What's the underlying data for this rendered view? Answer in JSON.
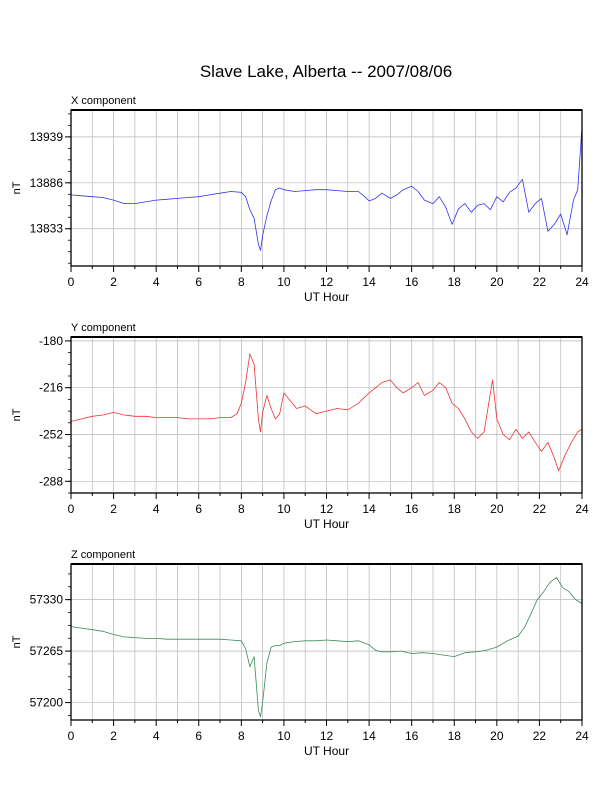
{
  "title": "Slave Lake, Alberta -- 2007/08/06",
  "chart_data": [
    {
      "type": "line",
      "panel_label": "X component",
      "xlabel": "UT Hour",
      "ylabel": "nT",
      "xlim": [
        0,
        24
      ],
      "ylim": [
        13790,
        13970
      ],
      "xticks": [
        0,
        2,
        4,
        6,
        8,
        10,
        12,
        14,
        16,
        18,
        20,
        22,
        24
      ],
      "yticks": [
        13833,
        13886,
        13939
      ],
      "grid": true,
      "color": "#3333ee",
      "x": [
        0,
        0.5,
        1,
        1.5,
        2,
        2.5,
        3,
        3.5,
        4,
        4.5,
        5,
        5.5,
        6,
        6.5,
        7,
        7.5,
        8,
        8.2,
        8.4,
        8.6,
        8.8,
        8.9,
        9.0,
        9.2,
        9.4,
        9.6,
        9.8,
        10.0,
        10.5,
        11,
        11.5,
        12,
        12.5,
        13,
        13.5,
        13.8,
        14,
        14.3,
        14.6,
        15,
        15.3,
        15.6,
        16,
        16.3,
        16.6,
        17,
        17.3,
        17.6,
        17.9,
        18.2,
        18.5,
        18.8,
        19.1,
        19.4,
        19.7,
        20,
        20.3,
        20.6,
        20.9,
        21.2,
        21.5,
        21.8,
        22.1,
        22.4,
        22.7,
        23,
        23.3,
        23.6,
        23.8,
        24
      ],
      "y": [
        13872,
        13871,
        13870,
        13869,
        13866,
        13862,
        13862,
        13864,
        13866,
        13867,
        13868,
        13869,
        13870,
        13872,
        13874,
        13876,
        13875,
        13870,
        13855,
        13845,
        13815,
        13808,
        13825,
        13848,
        13865,
        13878,
        13880,
        13878,
        13876,
        13877,
        13878,
        13878,
        13877,
        13876,
        13876,
        13870,
        13865,
        13868,
        13874,
        13868,
        13872,
        13878,
        13882,
        13876,
        13866,
        13862,
        13870,
        13858,
        13838,
        13856,
        13862,
        13852,
        13860,
        13862,
        13855,
        13870,
        13864,
        13875,
        13880,
        13890,
        13852,
        13862,
        13868,
        13830,
        13838,
        13850,
        13826,
        13866,
        13878,
        13950
      ]
    },
    {
      "type": "line",
      "panel_label": "Y component",
      "xlabel": "UT Hour",
      "ylabel": "nT",
      "xlim": [
        0,
        24
      ],
      "ylim": [
        -297,
        -177
      ],
      "xticks": [
        0,
        2,
        4,
        6,
        8,
        10,
        12,
        14,
        16,
        18,
        20,
        22,
        24
      ],
      "yticks": [
        -180,
        -216,
        -252,
        -288
      ],
      "grid": true,
      "color": "#ee3333",
      "x": [
        0,
        0.5,
        1,
        1.5,
        2,
        2.5,
        3,
        3.5,
        4,
        4.5,
        5,
        5.5,
        6,
        6.5,
        7,
        7.5,
        7.8,
        8.0,
        8.2,
        8.4,
        8.6,
        8.8,
        8.9,
        9.0,
        9.2,
        9.4,
        9.6,
        9.8,
        10.0,
        10.3,
        10.6,
        11,
        11.5,
        12,
        12.5,
        13,
        13.5,
        14,
        14.3,
        14.6,
        15,
        15.3,
        15.6,
        16,
        16.3,
        16.6,
        17,
        17.3,
        17.6,
        17.9,
        18.2,
        18.5,
        18.8,
        19.1,
        19.4,
        19.6,
        19.8,
        20,
        20.3,
        20.6,
        20.9,
        21.2,
        21.5,
        21.8,
        22.1,
        22.4,
        22.7,
        22.9,
        23.2,
        23.5,
        23.8,
        24
      ],
      "y": [
        -242,
        -240,
        -238,
        -237,
        -235,
        -237,
        -238,
        -238,
        -239,
        -239,
        -239,
        -240,
        -240,
        -240,
        -239,
        -239,
        -236,
        -228,
        -212,
        -190,
        -198,
        -240,
        -250,
        -235,
        -222,
        -232,
        -240,
        -236,
        -220,
        -226,
        -232,
        -230,
        -236,
        -234,
        -232,
        -233,
        -228,
        -220,
        -216,
        -212,
        -210,
        -216,
        -220,
        -216,
        -212,
        -222,
        -218,
        -212,
        -216,
        -228,
        -232,
        -240,
        -250,
        -255,
        -250,
        -230,
        -210,
        -240,
        -252,
        -256,
        -248,
        -255,
        -250,
        -258,
        -265,
        -258,
        -270,
        -280,
        -268,
        -258,
        -250,
        -248
      ]
    },
    {
      "type": "line",
      "panel_label": "Z component",
      "xlabel": "UT Hour",
      "ylabel": "nT",
      "xlim": [
        0,
        24
      ],
      "ylim": [
        57178,
        57375
      ],
      "xticks": [
        0,
        2,
        4,
        6,
        8,
        10,
        12,
        14,
        16,
        18,
        20,
        22,
        24
      ],
      "yticks": [
        57200,
        57265,
        57330
      ],
      "grid": true,
      "color": "#3a8a5a",
      "x": [
        0,
        0.5,
        1,
        1.5,
        2,
        2.5,
        3,
        3.5,
        4,
        4.5,
        5,
        5.5,
        6,
        6.5,
        7,
        7.5,
        8,
        8.2,
        8.4,
        8.6,
        8.8,
        8.9,
        9.0,
        9.2,
        9.4,
        9.6,
        9.8,
        10.0,
        10.5,
        11,
        11.5,
        12,
        12.5,
        13,
        13.5,
        14,
        14.3,
        14.6,
        15,
        15.5,
        16,
        16.5,
        17,
        17.5,
        18,
        18.5,
        19,
        19.5,
        20,
        20.5,
        21,
        21.3,
        21.6,
        21.9,
        22.2,
        22.5,
        22.8,
        23.1,
        23.4,
        23.7,
        24
      ],
      "y": [
        57296,
        57294,
        57292,
        57290,
        57286,
        57283,
        57282,
        57281,
        57281,
        57280,
        57280,
        57280,
        57280,
        57280,
        57280,
        57279,
        57278,
        57268,
        57245,
        57258,
        57190,
        57182,
        57200,
        57250,
        57270,
        57272,
        57272,
        57275,
        57277,
        57278,
        57278,
        57279,
        57278,
        57277,
        57278,
        57273,
        57266,
        57264,
        57264,
        57265,
        57262,
        57263,
        57262,
        57260,
        57258,
        57263,
        57264,
        57266,
        57270,
        57278,
        57284,
        57295,
        57312,
        57330,
        57340,
        57352,
        57358,
        57345,
        57340,
        57330,
        57325
      ]
    }
  ]
}
